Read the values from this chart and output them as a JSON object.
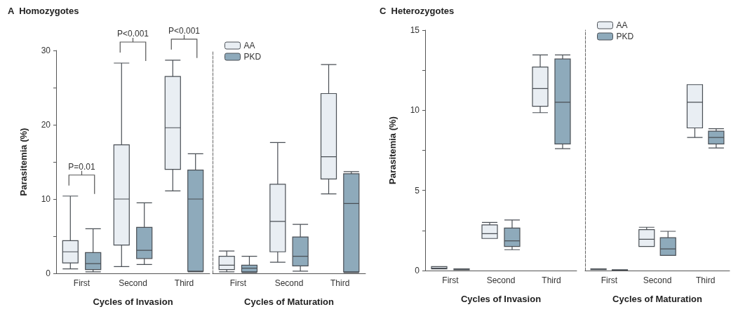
{
  "chart_data": [
    {
      "type": "box",
      "title": "A  Homozygotes",
      "xlabel": "Cycles of Invasion",
      "ylabel": "Parasitemia (%)",
      "categories": [
        "First",
        "Second",
        "Third"
      ],
      "ylim": [
        0,
        30
      ],
      "yticks": [
        0,
        {
          "value": 5,
          "label": null
        },
        10,
        {
          "value": 15,
          "label": null
        },
        20,
        {
          "value": 25,
          "label": null
        },
        30
      ],
      "grid": false,
      "legend": false,
      "annotations": [
        "P=0.01",
        "P<0.001",
        "P<0.001"
      ],
      "series": [
        {
          "color": "#e9eef3",
          "boxes": [
            {
              "low": 0.6,
              "q1": 1.4,
              "median": 2.9,
              "q3": 4.4,
              "high": 10.4
            },
            {
              "low": 0.9,
              "q1": 3.8,
              "median": 10,
              "q3": 17.3,
              "high": 28.3
            },
            {
              "low": 11.1,
              "q1": 14.0,
              "median": 19.6,
              "q3": 26.5,
              "high": 28.7
            }
          ]
        },
        {
          "color": "#8eaabb",
          "boxes": [
            {
              "low": 0.2,
              "q1": 0.5,
              "median": 1.3,
              "q3": 2.8,
              "high": 6.0
            },
            {
              "low": 1.2,
              "q1": 2.0,
              "median": 3.1,
              "q3": 6.2,
              "high": 9.5
            },
            {
              "low": 0.2,
              "q1": 0.3,
              "median": 10,
              "q3": 13.9,
              "high": 16.1
            }
          ]
        }
      ]
    },
    {
      "type": "box",
      "xlabel": "Cycles of Maturation",
      "categories": [
        "First",
        "Second",
        "Third"
      ],
      "ylim": [
        0,
        30
      ],
      "tick_labels": "x",
      "grid": false,
      "legend": "top left",
      "series": [
        {
          "name": "AA",
          "color": "#e9eef3",
          "boxes": [
            {
              "low": 0.2,
              "q1": 0.5,
              "median": 1.1,
              "q3": 2.3,
              "high": 3.0
            },
            {
              "low": 1.5,
              "q1": 2.9,
              "median": 7.0,
              "q3": 12.0,
              "high": 17.6
            },
            {
              "low": 10.7,
              "q1": 12.7,
              "median": 15.7,
              "q3": 24.2,
              "high": 28.1
            }
          ]
        },
        {
          "name": "PKD",
          "color": "#8eaabb",
          "boxes": [
            {
              "low": 0.1,
              "q1": 0.2,
              "median": 0.7,
              "q3": 1.1,
              "high": 2.3
            },
            {
              "low": 0.3,
              "q1": 1.0,
              "median": 2.3,
              "q3": 4.9,
              "high": 6.6
            },
            {
              "low": 0.1,
              "q1": 0.2,
              "median": 9.4,
              "q3": 13.4,
              "high": 13.7
            }
          ]
        }
      ]
    },
    {
      "type": "box",
      "title": "C  Heterozygotes",
      "xlabel": "Cycles of Invasion",
      "ylabel": "Parasitemia (%)",
      "categories": [
        "First",
        "Second",
        "Third"
      ],
      "ylim": [
        0,
        15
      ],
      "yticks": [
        0,
        {
          "value": 2.5,
          "label": null
        },
        5,
        {
          "value": 7.5,
          "label": null
        },
        10,
        {
          "value": 12.5,
          "label": null
        },
        15
      ],
      "grid": false,
      "legend": false,
      "series": [
        {
          "color": "#e9eef3",
          "boxes": [
            {
              "low": 0.1,
              "q1": 0.1,
              "median": 0.15,
              "q3": 0.25,
              "high": 0.25
            },
            {
              "low": 2.0,
              "q1": 2.0,
              "median": 2.3,
              "q3": 2.85,
              "high": 3.0
            },
            {
              "low": 9.85,
              "q1": 10.25,
              "median": 11.35,
              "q3": 12.7,
              "high": 13.45
            }
          ]
        },
        {
          "color": "#8eaabb",
          "boxes": [
            {
              "low": 0.05,
              "q1": 0.05,
              "median": 0.08,
              "q3": 0.1,
              "high": 0.1
            },
            {
              "low": 1.3,
              "q1": 1.5,
              "median": 1.85,
              "q3": 2.65,
              "high": 3.15
            },
            {
              "low": 7.6,
              "q1": 7.9,
              "median": 10.5,
              "q3": 13.2,
              "high": 13.45
            }
          ]
        }
      ]
    },
    {
      "type": "box",
      "xlabel": "Cycles of Maturation",
      "categories": [
        "First",
        "Second",
        "Third"
      ],
      "ylim": [
        0,
        15
      ],
      "tick_labels": "x",
      "grid": false,
      "legend": "top left",
      "series": [
        {
          "name": "AA",
          "color": "#e9eef3",
          "boxes": [
            {
              "low": 0.06,
              "q1": 0.06,
              "median": 0.08,
              "q3": 0.1,
              "high": 0.1
            },
            {
              "low": 1.5,
              "q1": 1.5,
              "median": 1.95,
              "q3": 2.55,
              "high": 2.7
            },
            {
              "low": 8.3,
              "q1": 8.9,
              "median": 10.5,
              "q3": 11.6,
              "high": 11.6
            }
          ]
        },
        {
          "name": "PKD",
          "color": "#8eaabb",
          "boxes": [
            {
              "low": 0.03,
              "q1": 0.03,
              "median": 0.04,
              "q3": 0.05,
              "high": 0.05
            },
            {
              "low": 0.95,
              "q1": 0.95,
              "median": 1.35,
              "q3": 2.05,
              "high": 2.45
            },
            {
              "low": 7.65,
              "q1": 7.9,
              "median": 8.3,
              "q3": 8.7,
              "high": 8.85
            }
          ]
        }
      ]
    }
  ]
}
